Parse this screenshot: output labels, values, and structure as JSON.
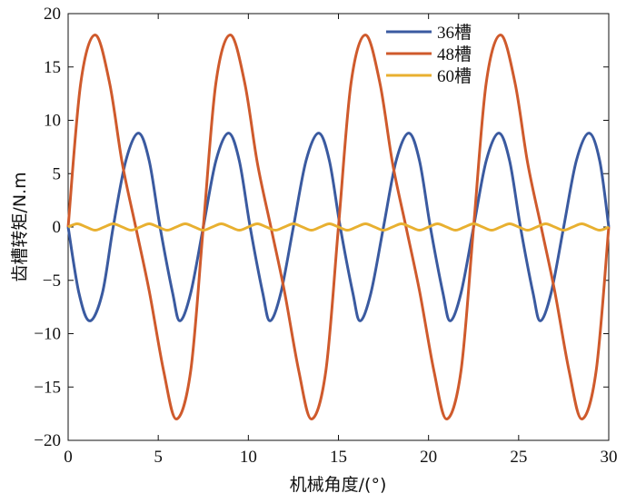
{
  "chart_data": {
    "type": "line",
    "xlabel": "机械角度/(°)",
    "ylabel": "齿槽转矩/N.m",
    "xlim": [
      0,
      30
    ],
    "ylim": [
      -20,
      20
    ],
    "x_ticks": [
      "0",
      "5",
      "10",
      "15",
      "20",
      "25",
      "30"
    ],
    "y_ticks": [
      "20",
      "15",
      "10",
      "5",
      "0",
      "−5",
      "−10",
      "−15",
      "−20"
    ],
    "grid": false,
    "legend_position": "top-right",
    "series": [
      {
        "name": "36槽",
        "color": "#3a5aa0",
        "x": [
          0,
          0.6,
          1.2,
          1.9,
          2.5,
          3.2,
          3.9,
          4.5,
          5.1,
          5.8,
          6.2,
          6.8,
          7.5,
          8.2,
          8.9,
          9.5,
          10.1,
          10.8,
          11.2,
          11.8,
          12.5,
          13.2,
          13.9,
          14.5,
          15.1,
          15.8,
          16.2,
          16.8,
          17.5,
          18.2,
          18.9,
          19.5,
          20.1,
          20.8,
          21.2,
          21.8,
          22.5,
          23.2,
          23.9,
          24.5,
          25.1,
          25.8,
          26.2,
          26.8,
          27.5,
          28.2,
          28.9,
          29.5,
          30
        ],
        "values": [
          0,
          -6.2,
          -8.8,
          -6.2,
          0,
          6.2,
          8.8,
          6.2,
          0,
          -6.2,
          -8.8,
          -6.2,
          0,
          6.2,
          8.8,
          6.2,
          0,
          -6.2,
          -8.8,
          -6.2,
          0,
          6.2,
          8.8,
          6.2,
          0,
          -6.2,
          -8.8,
          -6.2,
          0,
          6.2,
          8.8,
          6.2,
          0,
          -6.2,
          -8.8,
          -6.2,
          0,
          6.2,
          8.8,
          6.2,
          0,
          -6.2,
          -8.8,
          -6.2,
          0,
          6.2,
          8.8,
          6.2,
          0
        ]
      },
      {
        "name": "48槽",
        "color": "#cf5a2c",
        "x": [
          0,
          0.7,
          1.5,
          2.3,
          3.0,
          3.75,
          4.5,
          5.3,
          6.0,
          6.8,
          7.5,
          8.2,
          9.0,
          9.8,
          10.5,
          11.25,
          12.0,
          12.8,
          13.5,
          14.3,
          15.0,
          15.7,
          16.5,
          17.3,
          18.0,
          18.75,
          19.5,
          20.3,
          21.0,
          21.8,
          22.5,
          23.2,
          24.0,
          24.8,
          25.5,
          26.25,
          27.0,
          27.8,
          28.5,
          29.3,
          30.0
        ],
        "values": [
          0,
          13.5,
          18,
          13.5,
          6,
          0,
          -6,
          -13.5,
          -18,
          -13.5,
          0,
          13.5,
          18,
          13.5,
          6,
          0,
          -6,
          -13.5,
          -18,
          -13.5,
          0,
          13.5,
          18,
          13.5,
          6,
          0,
          -6,
          -13.5,
          -18,
          -13.5,
          0,
          13.5,
          18,
          13.5,
          6,
          0,
          -6,
          -13.5,
          -18,
          -13.5,
          0
        ]
      },
      {
        "name": "60槽",
        "color": "#e8b030",
        "x": [
          0,
          0.5,
          1.0,
          1.5,
          2.0,
          2.5,
          3.0,
          3.5,
          4.0,
          4.5,
          5.0,
          5.5,
          6.0,
          6.5,
          7.0,
          7.5,
          8.0,
          8.5,
          9.0,
          9.5,
          10.0,
          10.5,
          11.0,
          11.5,
          12.0,
          12.5,
          13.0,
          13.5,
          14.0,
          14.5,
          15.0,
          15.5,
          16.0,
          16.5,
          17.0,
          17.5,
          18.0,
          18.5,
          19.0,
          19.5,
          20.0,
          20.5,
          21.0,
          21.5,
          22.0,
          22.5,
          23.0,
          23.5,
          24.0,
          24.5,
          25.0,
          25.5,
          26.0,
          26.5,
          27.0,
          27.5,
          28.0,
          28.5,
          29.0,
          29.5,
          30.0
        ],
        "values": [
          0,
          0.3,
          0,
          -0.3,
          0,
          0.3,
          0,
          -0.3,
          0,
          0.3,
          0,
          -0.3,
          0,
          0.3,
          0,
          -0.3,
          0,
          0.3,
          0,
          -0.3,
          0,
          0.3,
          0,
          -0.3,
          0,
          0.3,
          0,
          -0.3,
          0,
          0.3,
          0,
          -0.3,
          0,
          0.3,
          0,
          -0.3,
          0,
          0.3,
          0,
          -0.3,
          0,
          0.3,
          0,
          -0.3,
          0,
          0.3,
          0,
          -0.3,
          0,
          0.3,
          0,
          -0.3,
          0,
          0.3,
          0,
          -0.3,
          0,
          0.3,
          0,
          -0.3,
          0
        ]
      }
    ]
  }
}
